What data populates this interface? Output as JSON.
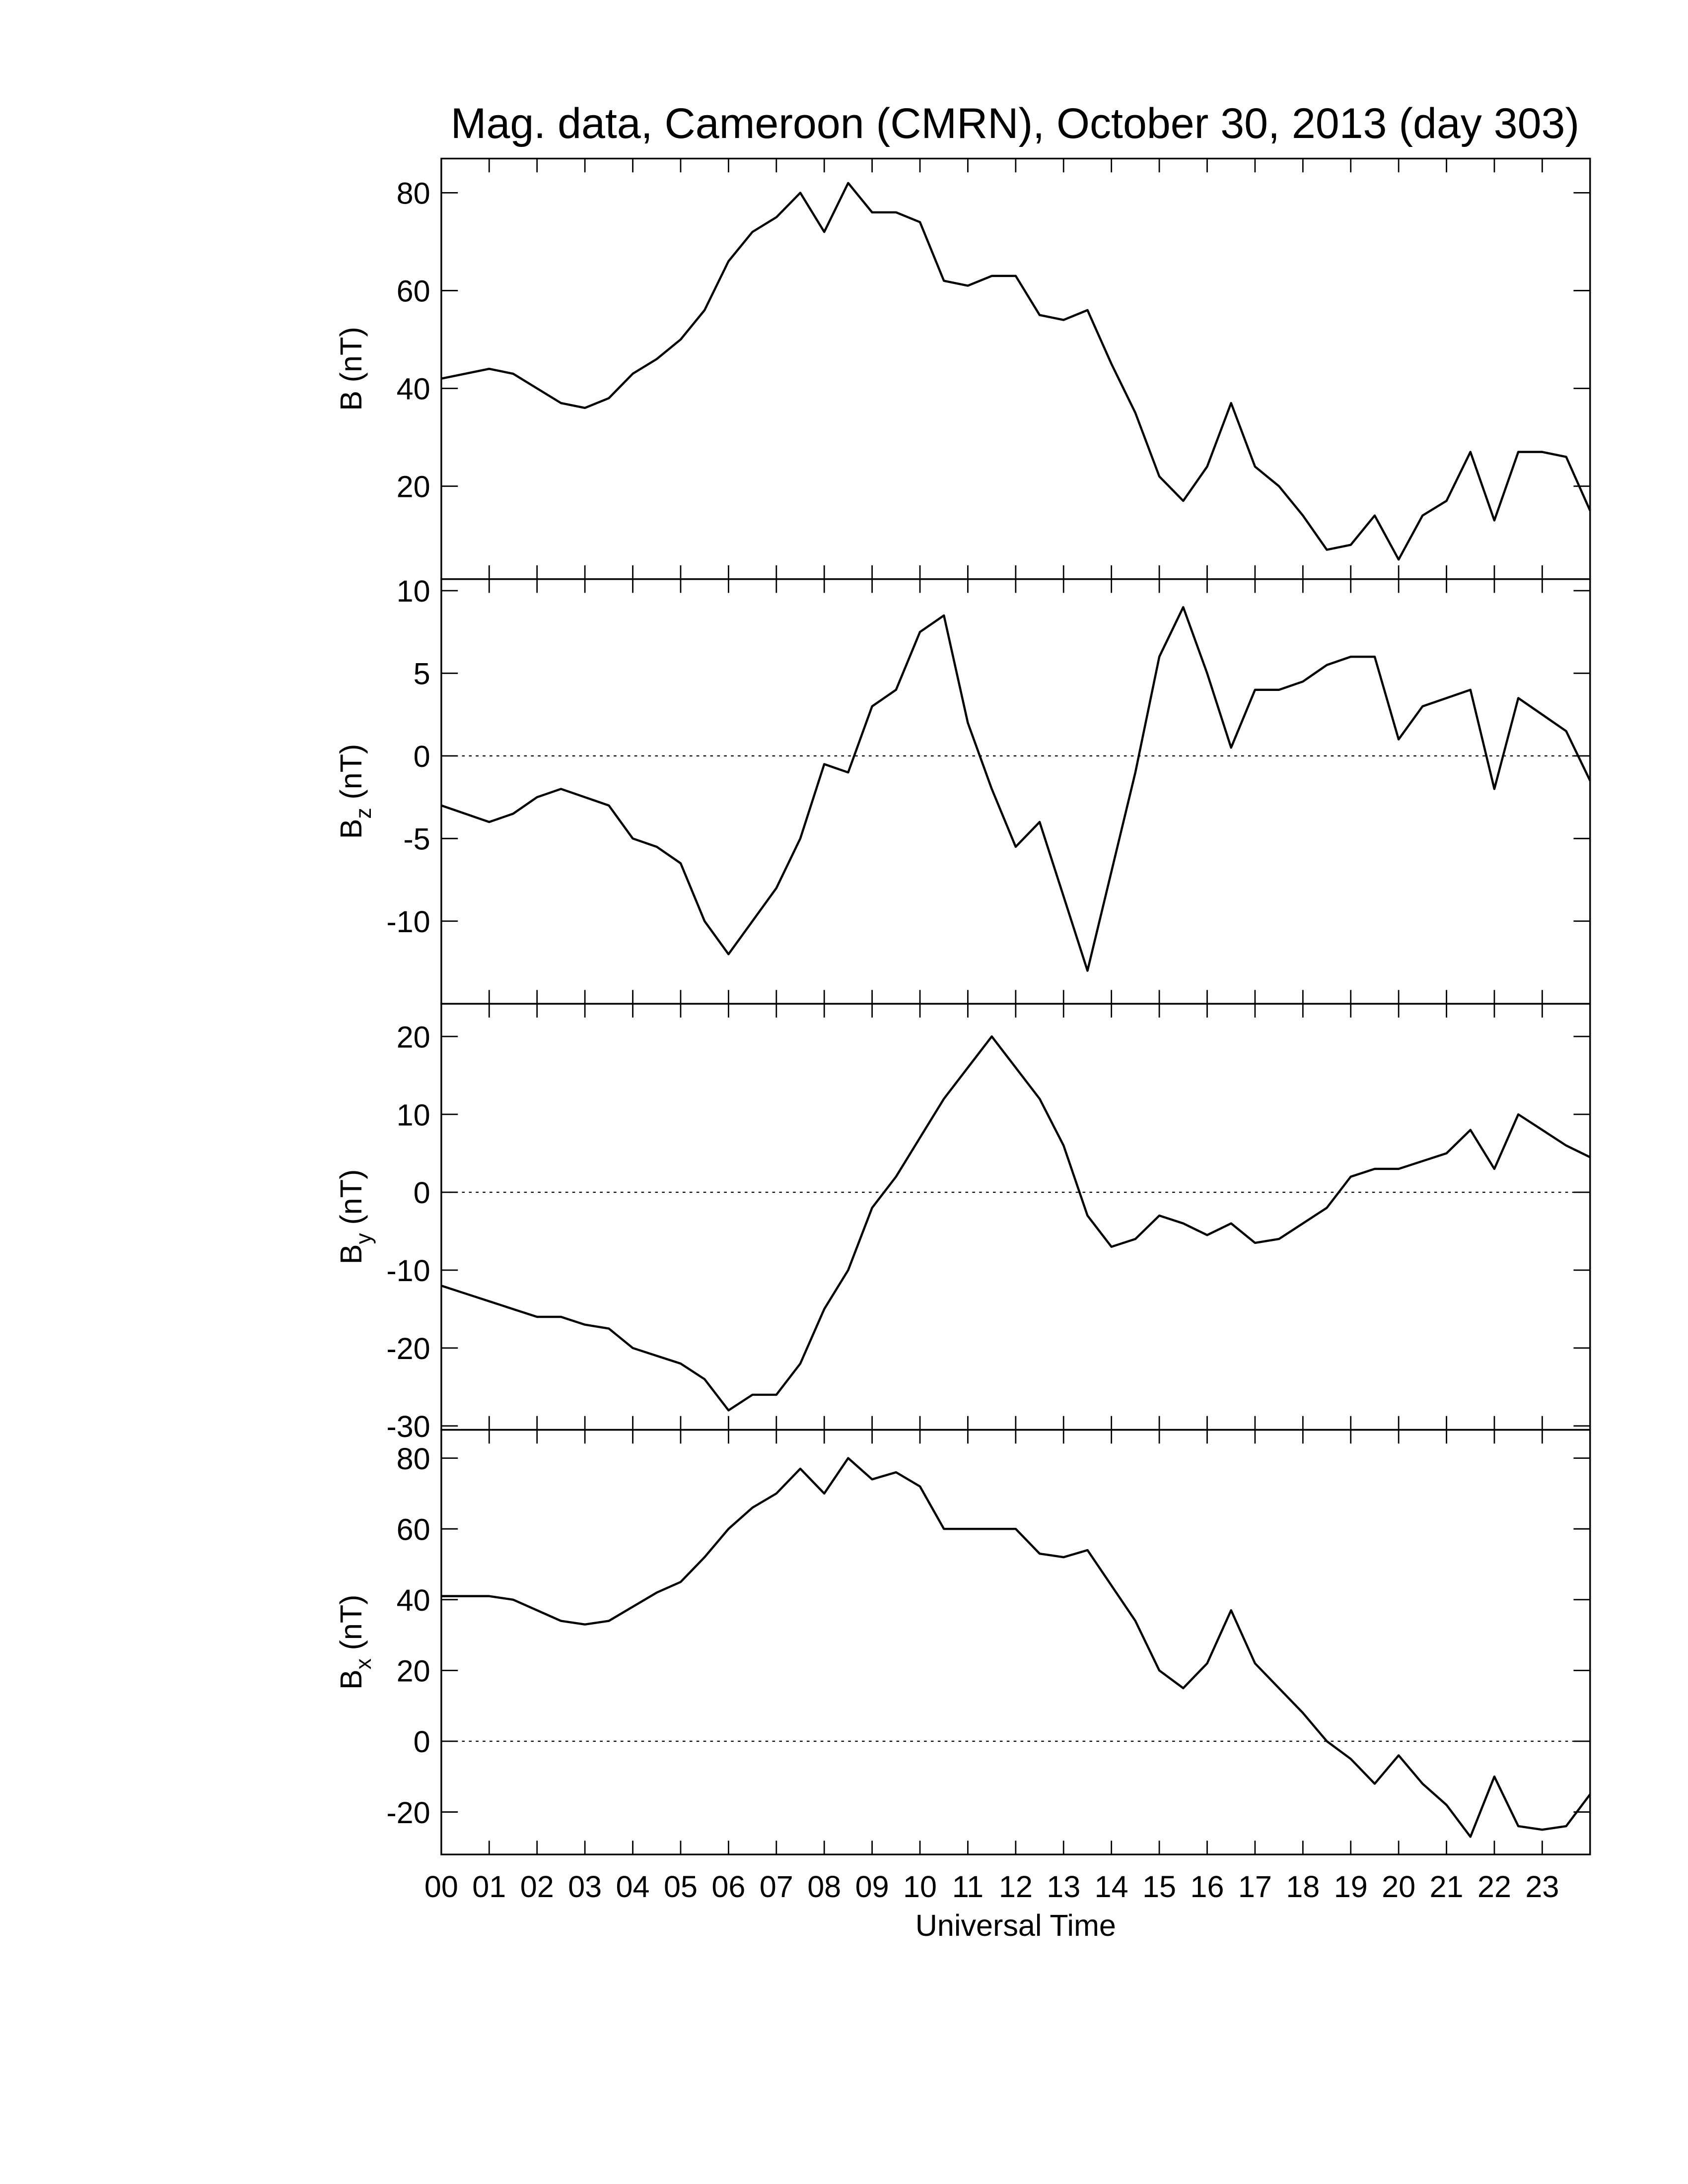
{
  "chart_data": [
    {
      "type": "line",
      "title": "Mag. data, Cameroon (CMRN), October 30, 2013 (day 303)",
      "ylabel": "B",
      "ylabel_unit": "(nT)",
      "color": "#000000",
      "x": [
        0,
        0.5,
        1,
        1.5,
        2,
        2.5,
        3,
        3.5,
        4,
        4.5,
        5,
        5.5,
        6,
        6.5,
        7,
        7.5,
        8,
        8.5,
        9,
        9.5,
        10,
        10.5,
        11,
        11.5,
        12,
        12.5,
        13,
        13.5,
        14,
        14.5,
        15,
        15.5,
        16,
        16.5,
        17,
        17.5,
        18,
        18.5,
        19,
        19.5,
        20,
        20.5,
        21,
        21.5,
        22,
        22.5,
        23,
        23.5,
        24
      ],
      "values": [
        42,
        43,
        44,
        43,
        40,
        37,
        36,
        38,
        43,
        46,
        50,
        56,
        66,
        72,
        75,
        80,
        72,
        82,
        76,
        76,
        74,
        62,
        61,
        63,
        63,
        55,
        54,
        56,
        45,
        35,
        22,
        17,
        24,
        37,
        24,
        20,
        14,
        7,
        8,
        14,
        5,
        14,
        17,
        27,
        13,
        27,
        27,
        26,
        15
      ],
      "xlim": [
        0,
        24
      ],
      "ylim": [
        1,
        87
      ],
      "yticks": [
        20,
        40,
        60,
        80
      ]
    },
    {
      "type": "line",
      "ylabel": "B",
      "ylabel_sub": "z",
      "ylabel_unit": "(nT)",
      "color": "#000000",
      "zero_line": true,
      "x": [
        0,
        0.5,
        1,
        1.5,
        2,
        2.5,
        3,
        3.5,
        4,
        4.5,
        5,
        5.5,
        6,
        6.5,
        7,
        7.5,
        8,
        8.5,
        9,
        9.5,
        10,
        10.5,
        11,
        11.5,
        12,
        12.5,
        13,
        13.5,
        14,
        14.5,
        15,
        15.5,
        16,
        16.5,
        17,
        17.5,
        18,
        18.5,
        19,
        19.5,
        20,
        20.5,
        21,
        21.5,
        22,
        22.5,
        23,
        23.5,
        24
      ],
      "values": [
        -3,
        -3.5,
        -4,
        -3.5,
        -2.5,
        -2,
        -2.5,
        -3,
        -5,
        -5.5,
        -6.5,
        -10,
        -12,
        -10,
        -8,
        -5,
        -0.5,
        -1,
        3,
        4,
        7.5,
        8.5,
        2,
        -2,
        -5.5,
        -4,
        -8.5,
        -13,
        -7,
        -1,
        6,
        9,
        5,
        0.5,
        4,
        4,
        4.5,
        5.5,
        6,
        6,
        1,
        3,
        3.5,
        4,
        -2,
        3.5,
        2.5,
        1.5,
        -1.5
      ],
      "xlim": [
        0,
        24
      ],
      "ylim": [
        -15,
        10.7
      ],
      "yticks": [
        -10,
        -5,
        0,
        5,
        10
      ]
    },
    {
      "type": "line",
      "ylabel": "B",
      "ylabel_sub": "y",
      "ylabel_unit": "(nT)",
      "color": "#000000",
      "zero_line": true,
      "x": [
        0,
        0.5,
        1,
        1.5,
        2,
        2.5,
        3,
        3.5,
        4,
        4.5,
        5,
        5.5,
        6,
        6.5,
        7,
        7.5,
        8,
        8.5,
        9,
        9.5,
        10,
        10.5,
        11,
        11.5,
        12,
        12.5,
        13,
        13.5,
        14,
        14.5,
        15,
        15.5,
        16,
        16.5,
        17,
        17.5,
        18,
        18.5,
        19,
        19.5,
        20,
        20.5,
        21,
        21.5,
        22,
        22.5,
        23,
        23.5,
        24
      ],
      "values": [
        -12,
        -13,
        -14,
        -15,
        -16,
        -16,
        -17,
        -17.5,
        -20,
        -21,
        -22,
        -24,
        -28,
        -26,
        -26,
        -22,
        -15,
        -10,
        -2,
        2,
        7,
        12,
        16,
        20,
        16,
        12,
        6,
        -3,
        -7,
        -6,
        -3,
        -4,
        -5.5,
        -4,
        -6.5,
        -6,
        -4,
        -2,
        2,
        3,
        3,
        4,
        5,
        8,
        3,
        10,
        8,
        6,
        4.5
      ],
      "xlim": [
        0,
        24
      ],
      "ylim": [
        -30.5,
        24.2
      ],
      "yticks": [
        -30,
        -20,
        -10,
        0,
        10,
        20
      ]
    },
    {
      "type": "line",
      "ylabel": "B",
      "ylabel_sub": "x",
      "ylabel_unit": "(nT)",
      "xlabel": "Universal Time",
      "color": "#000000",
      "zero_line": true,
      "x": [
        0,
        0.5,
        1,
        1.5,
        2,
        2.5,
        3,
        3.5,
        4,
        4.5,
        5,
        5.5,
        6,
        6.5,
        7,
        7.5,
        8,
        8.5,
        9,
        9.5,
        10,
        10.5,
        11,
        11.5,
        12,
        12.5,
        13,
        13.5,
        14,
        14.5,
        15,
        15.5,
        16,
        16.5,
        17,
        17.5,
        18,
        18.5,
        19,
        19.5,
        20,
        20.5,
        21,
        21.5,
        22,
        22.5,
        23,
        23.5,
        24
      ],
      "values": [
        41,
        41,
        41,
        40,
        37,
        34,
        33,
        34,
        38,
        42,
        45,
        52,
        60,
        66,
        70,
        77,
        70,
        80,
        74,
        76,
        72,
        60,
        60,
        60,
        60,
        53,
        52,
        54,
        44,
        34,
        20,
        15,
        22,
        37,
        22,
        15,
        8,
        0,
        -5,
        -12,
        -4,
        -12,
        -18,
        -27,
        -10,
        -24,
        -25,
        -24,
        -15
      ],
      "xlim": [
        0,
        24
      ],
      "ylim": [
        -32,
        88
      ],
      "yticks": [
        -20,
        0,
        20,
        40,
        60,
        80
      ],
      "xticks": [
        {
          "value": 0,
          "label": "00"
        },
        {
          "value": 1,
          "label": "01"
        },
        {
          "value": 2,
          "label": "02"
        },
        {
          "value": 3,
          "label": "03"
        },
        {
          "value": 4,
          "label": "04"
        },
        {
          "value": 5,
          "label": "05"
        },
        {
          "value": 6,
          "label": "06"
        },
        {
          "value": 7,
          "label": "07"
        },
        {
          "value": 8,
          "label": "08"
        },
        {
          "value": 9,
          "label": "09"
        },
        {
          "value": 10,
          "label": "10"
        },
        {
          "value": 11,
          "label": "11"
        },
        {
          "value": 12,
          "label": "12"
        },
        {
          "value": 13,
          "label": "13"
        },
        {
          "value": 14,
          "label": "14"
        },
        {
          "value": 15,
          "label": "15"
        },
        {
          "value": 16,
          "label": "16"
        },
        {
          "value": 17,
          "label": "17"
        },
        {
          "value": 18,
          "label": "18"
        },
        {
          "value": 19,
          "label": "19"
        },
        {
          "value": 20,
          "label": "20"
        },
        {
          "value": 21,
          "label": "21"
        },
        {
          "value": 22,
          "label": "22"
        },
        {
          "value": 23,
          "label": "23"
        }
      ]
    }
  ]
}
